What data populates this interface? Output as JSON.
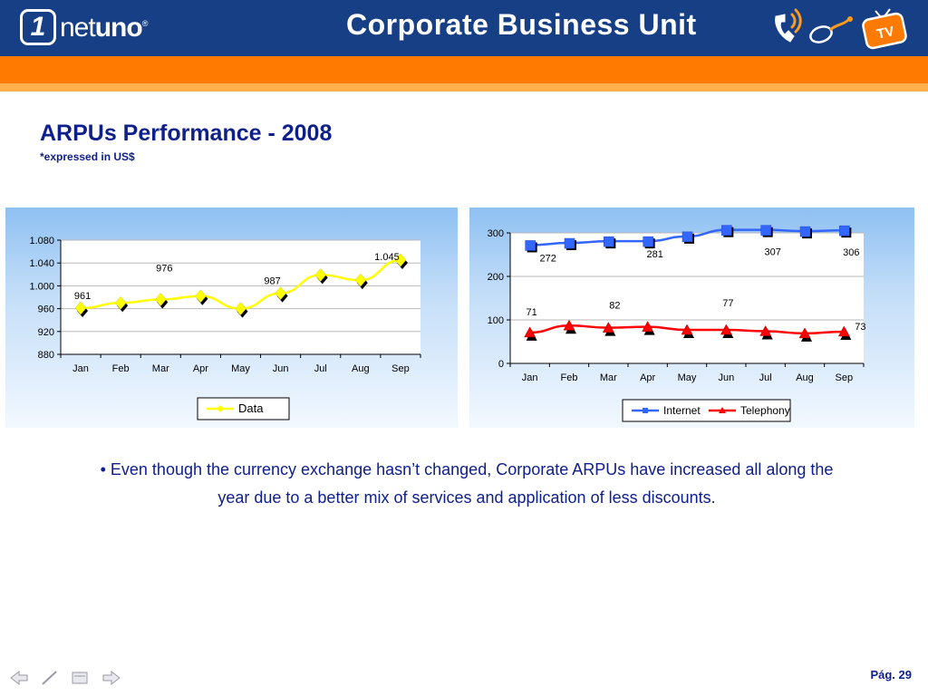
{
  "header": {
    "logo_one": "1",
    "logo_net": "net",
    "logo_uno": "uno",
    "logo_mark": "®",
    "title": "Corporate Business Unit",
    "tv_label": "TV",
    "icons": [
      "phone-icon",
      "mouse-icon",
      "tv-icon"
    ],
    "colors": {
      "header_bg": "#173f86",
      "band": "#ff7a00",
      "stripe": "#ffb04a"
    }
  },
  "main": {
    "title": "ARPUs Performance -  2008",
    "subtitle": "*expressed in US$",
    "bullet_marker": "•",
    "bullet_text": "Even though the currency exchange hasn’t changed, Corporate ARPUs have increased all along the year due to a better mix of services and application of less discounts."
  },
  "footer": {
    "page_label": "Pág. 29",
    "nav_icons": [
      "back-arrow-icon",
      "pen-icon",
      "menu-icon",
      "forward-arrow-icon"
    ]
  },
  "chart_data": [
    {
      "type": "line",
      "categories": [
        "Jan",
        "Feb",
        "Mar",
        "Apr",
        "May",
        "Jun",
        "Jul",
        "Aug",
        "Sep"
      ],
      "series": [
        {
          "name": "Data",
          "color": "#ffff00",
          "marker": "diamond",
          "values": [
            961,
            970,
            976,
            982,
            960,
            987,
            1019,
            1010,
            1045
          ]
        }
      ],
      "data_labels": [
        {
          "index": 0,
          "text": "961"
        },
        {
          "index": 2,
          "text": "976"
        },
        {
          "index": 5,
          "text": "987"
        },
        {
          "index": 8,
          "text": "1.045"
        }
      ],
      "ylim": [
        880,
        1080
      ],
      "yticks": [
        880,
        920,
        960,
        1000,
        1040,
        1080
      ],
      "ytick_labels": [
        "880",
        "920",
        "960",
        "1.000",
        "1.040",
        "1.080"
      ],
      "grid": true,
      "legend_position": "bottom"
    },
    {
      "type": "line",
      "categories": [
        "Jan",
        "Feb",
        "Mar",
        "Apr",
        "May",
        "Jun",
        "Jul",
        "Aug",
        "Sep"
      ],
      "series": [
        {
          "name": "Internet",
          "color": "#3366ff",
          "marker": "square",
          "values": [
            272,
            277,
            281,
            281,
            292,
            307,
            307,
            304,
            306
          ]
        },
        {
          "name": "Telephony",
          "color": "#ff0000",
          "marker": "triangle",
          "values": [
            71,
            87,
            82,
            84,
            77,
            77,
            74,
            69,
            73
          ]
        }
      ],
      "data_labels": [
        {
          "series": 0,
          "index": 0,
          "text": "272"
        },
        {
          "series": 0,
          "index": 3,
          "text": "281"
        },
        {
          "series": 0,
          "index": 6,
          "text": "307"
        },
        {
          "series": 0,
          "index": 8,
          "text": "306"
        },
        {
          "series": 1,
          "index": 0,
          "text": "71"
        },
        {
          "series": 1,
          "index": 2,
          "text": "82"
        },
        {
          "series": 1,
          "index": 5,
          "text": "77"
        },
        {
          "series": 1,
          "index": 8,
          "text": "73"
        }
      ],
      "ylim": [
        0,
        300
      ],
      "yticks": [
        0,
        100,
        200,
        300
      ],
      "ytick_labels": [
        "0",
        "100",
        "200",
        "300"
      ],
      "grid": true,
      "legend_position": "bottom"
    }
  ]
}
